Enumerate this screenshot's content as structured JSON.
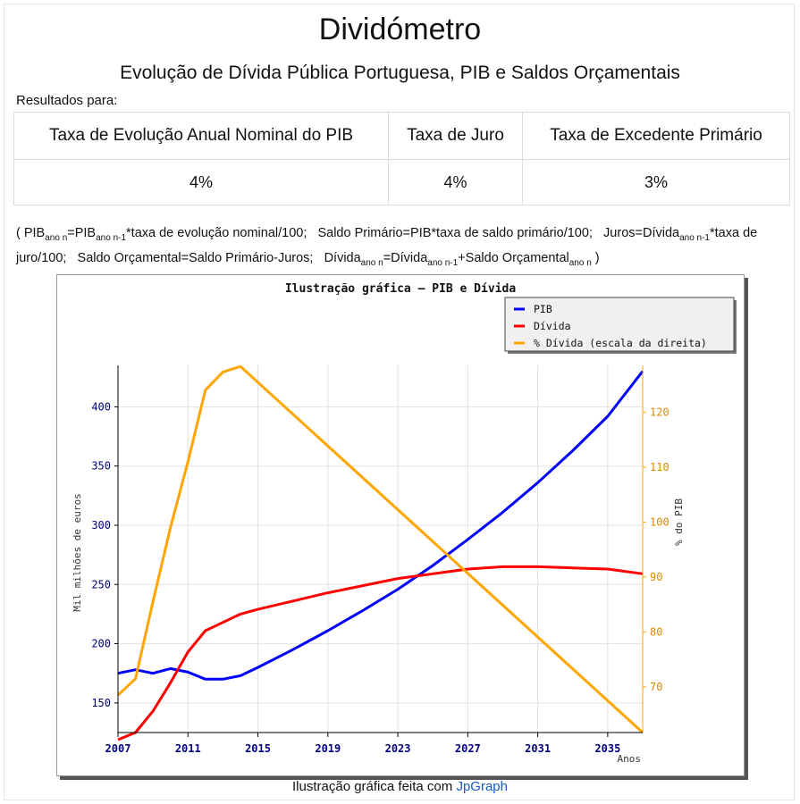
{
  "header": {
    "title": "Dividómetro",
    "subtitle": "Evolução de Dívida Pública Portuguesa, PIB e Saldos Orçamentais",
    "results_label": "Resultados para:"
  },
  "params": {
    "headers": [
      "Taxa de Evolução Anual Nominal do PIB",
      "Taxa de Juro",
      "Taxa de Excedente Primário"
    ],
    "values": [
      "4%",
      "4%",
      "3%"
    ]
  },
  "formula": {
    "open": "( ",
    "f1_a": "PIB",
    "f1_a_sub": "ano n",
    "f1_b": "=PIB",
    "f1_b_sub": "ano n-1",
    "f1_c": "*taxa de evolução nominal/100;",
    "f2": "Saldo Primário=PIB*taxa de saldo primário/100;",
    "f3_a": "Juros=Dívida",
    "f3_a_sub": "ano n-1",
    "f3_b": "*taxa de juro/100;",
    "f4": "Saldo Orçamental=Saldo Primário-Juros;",
    "f5_a": "Dívida",
    "f5_a_sub": "ano n",
    "f5_b": "=Dívida",
    "f5_b_sub": "ano n-1",
    "f5_c": "+Saldo Orçamental",
    "f5_c_sub": "ano n",
    "close": " )"
  },
  "credit": {
    "text": "Ilustração gráfica feita com ",
    "link": "JpGraph"
  },
  "chart_data": {
    "type": "line",
    "title": "Ilustração gráfica – PIB e Dívida",
    "xlabel": "Anos",
    "ylabel": "Mil milhões de euros",
    "y2label": "% do PIB",
    "xlim": [
      2007,
      2037
    ],
    "ylim": [
      125,
      435
    ],
    "y2lim": [
      61.7,
      128.5
    ],
    "x_ticks": [
      "2007",
      "2011",
      "2015",
      "2019",
      "2023",
      "2027",
      "2031",
      "2035"
    ],
    "y_ticks": [
      "150",
      "200",
      "250",
      "300",
      "350",
      "400"
    ],
    "y2_ticks": [
      "70",
      "80",
      "90",
      "100",
      "110",
      "120"
    ],
    "grid": true,
    "legend_position": "top-right",
    "series": [
      {
        "name": "PIB",
        "axis": "left",
        "color": "#0000ff",
        "x": [
          2007,
          2008,
          2009,
          2010,
          2011,
          2012,
          2013,
          2014,
          2015,
          2017,
          2019,
          2021,
          2023,
          2025,
          2027,
          2029,
          2031,
          2033,
          2035,
          2037
        ],
        "y": [
          175,
          178,
          175,
          179,
          176,
          170,
          170,
          173,
          180,
          195,
          211,
          228,
          246,
          266,
          288,
          311,
          336,
          363,
          392,
          430
        ]
      },
      {
        "name": "Dívida",
        "axis": "left",
        "color": "#ff0000",
        "x": [
          2007,
          2008,
          2009,
          2010,
          2011,
          2012,
          2013,
          2014,
          2015,
          2017,
          2019,
          2021,
          2023,
          2025,
          2027,
          2029,
          2031,
          2033,
          2035,
          2037
        ],
        "y": [
          119,
          125,
          143,
          167,
          193,
          211,
          218,
          225,
          229,
          236,
          243,
          249,
          255,
          259,
          263,
          265,
          265,
          264,
          263,
          259
        ]
      },
      {
        "name": "% Dívida (escala da direita)",
        "axis": "right",
        "color": "#ffa500",
        "x": [
          2007,
          2008,
          2009,
          2010,
          2011,
          2012,
          2013,
          2014,
          2037
        ],
        "y": [
          68.5,
          71.5,
          85.5,
          99,
          111,
          124,
          127.3,
          128.3,
          61.7
        ]
      }
    ]
  }
}
